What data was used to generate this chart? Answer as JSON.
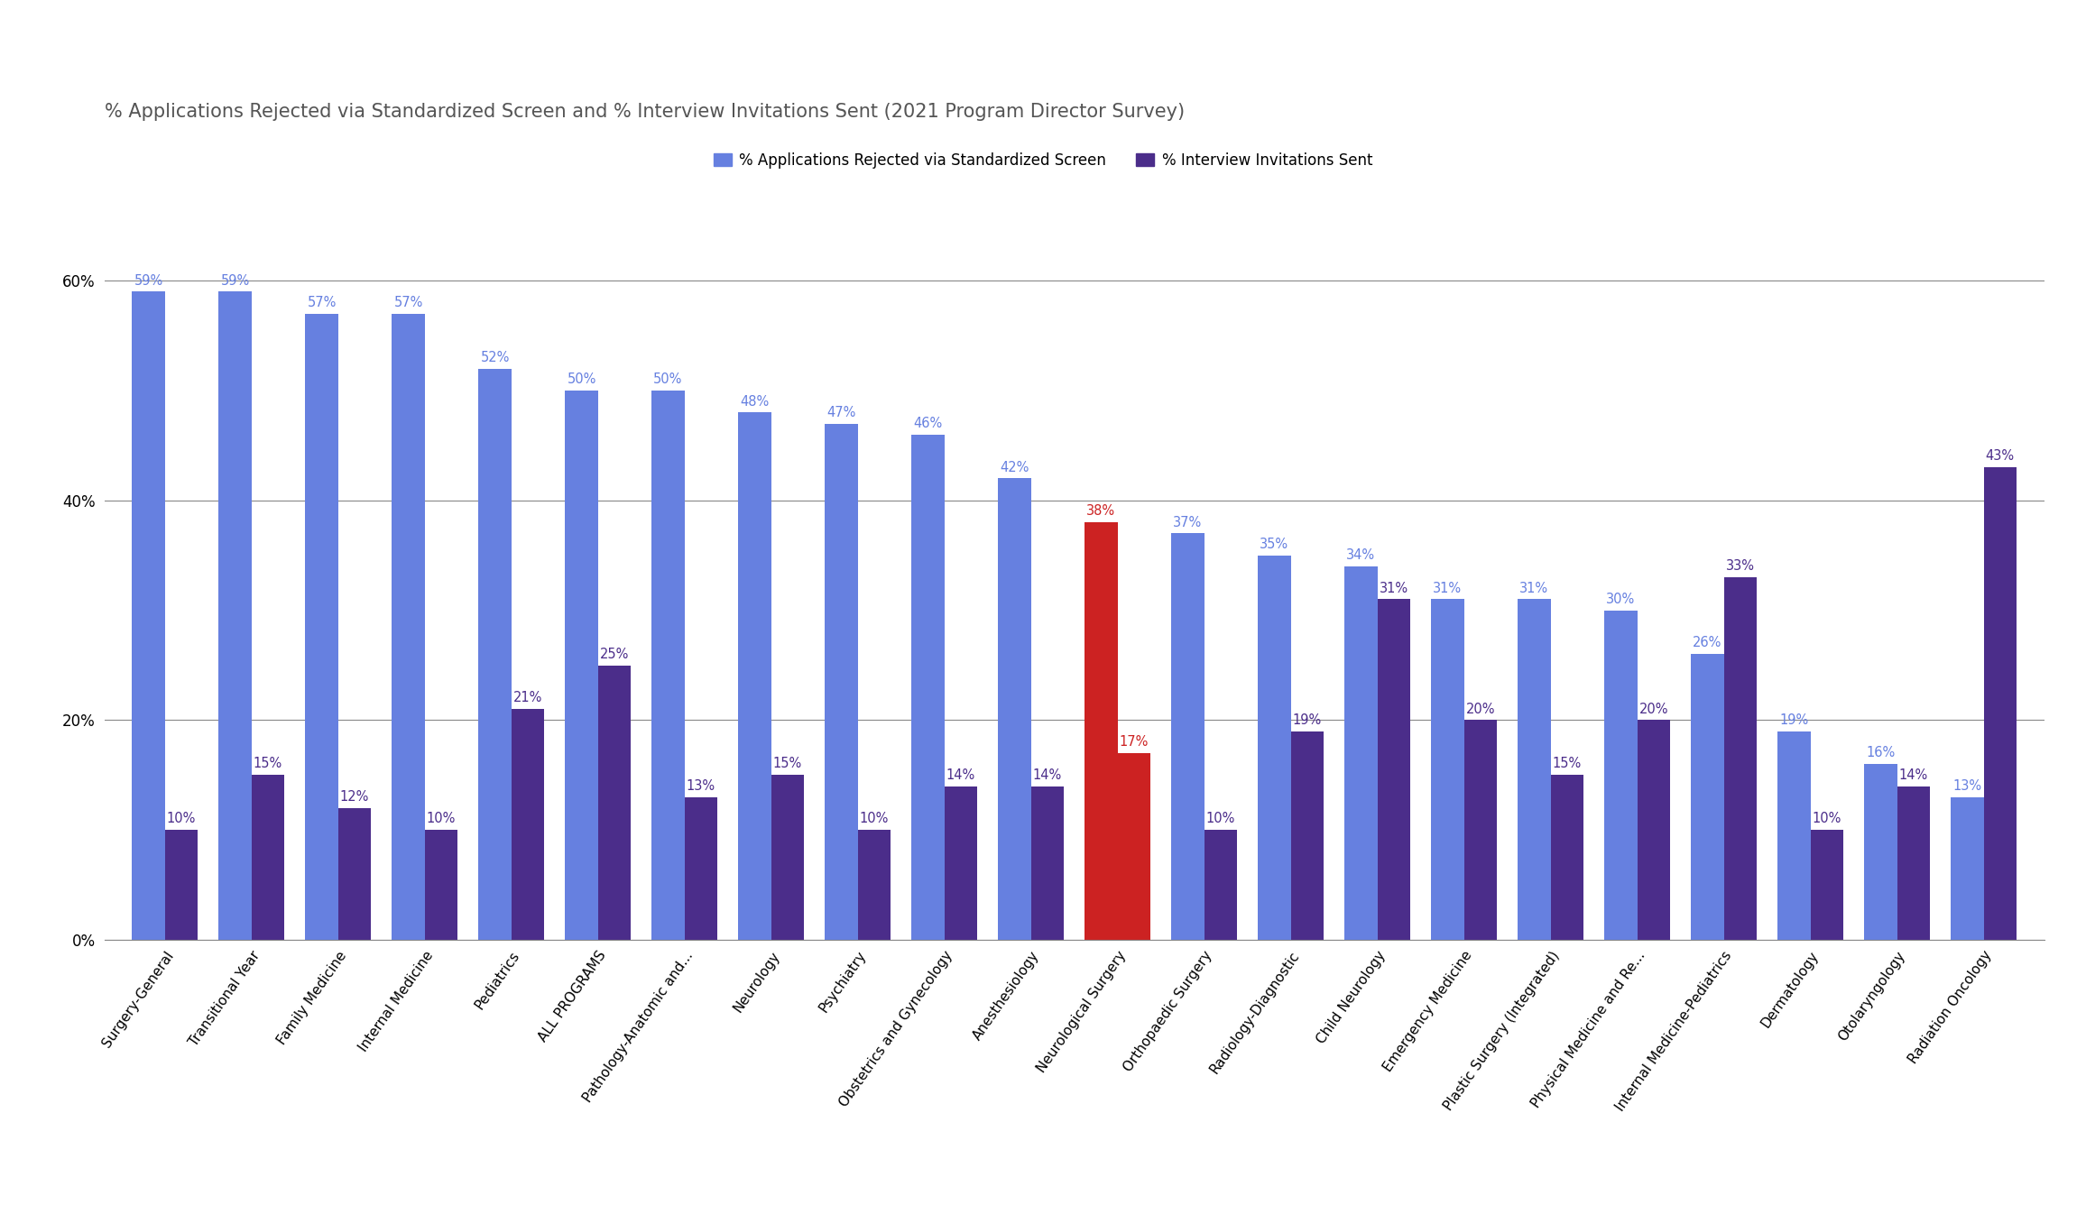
{
  "title": "% Applications Rejected via Standardized Screen and % Interview Invitations Sent (2021 Program Director Survey)",
  "categories": [
    "Surgery-General",
    "Transitional Year",
    "Family Medicine",
    "Internal Medicine",
    "Pediatrics",
    "ALL PROGRAMS",
    "Pathology-Anatomic and...",
    "Neurology",
    "Psychiatry",
    "Obstetrics and Gynecology",
    "Anesthesiology",
    "Neurological Surgery",
    "Orthopaedic Surgery",
    "Radiology-Diagnostic",
    "Child Neurology",
    "Emergency Medicine",
    "Plastic Surgery (Integrated)",
    "Physical Medicine and Re...",
    "Internal Medicine-Pediatrics",
    "Dermatology",
    "Otolaryngology",
    "Radiation Oncology"
  ],
  "rejected_values": [
    59,
    59,
    57,
    57,
    52,
    50,
    50,
    48,
    47,
    46,
    42,
    38,
    37,
    35,
    34,
    31,
    31,
    30,
    26,
    19,
    16,
    13
  ],
  "invited_values": [
    10,
    15,
    12,
    10,
    21,
    25,
    13,
    15,
    10,
    14,
    14,
    17,
    10,
    19,
    31,
    20,
    15,
    20,
    33,
    10,
    14,
    43
  ],
  "rejected_color_default": "#6680e0",
  "rejected_color_highlight": "#cc2222",
  "invited_color_default": "#4b2d8a",
  "invited_color_highlight": "#cc2222",
  "highlight_index": 11,
  "legend_label_rejected": "% Applications Rejected via Standardized Screen",
  "legend_label_invited": "% Interview Invitations Sent",
  "ylim": [
    0,
    68
  ],
  "yticks": [
    0,
    20,
    40,
    60
  ],
  "ytick_labels": [
    "0%",
    "20%",
    "40%",
    "60%"
  ],
  "title_fontsize": 15,
  "label_fontsize": 10.5,
  "tick_fontsize": 10,
  "bar_width": 0.38,
  "grid_color": "#888888",
  "title_color": "#555555",
  "legend_fontsize": 12
}
